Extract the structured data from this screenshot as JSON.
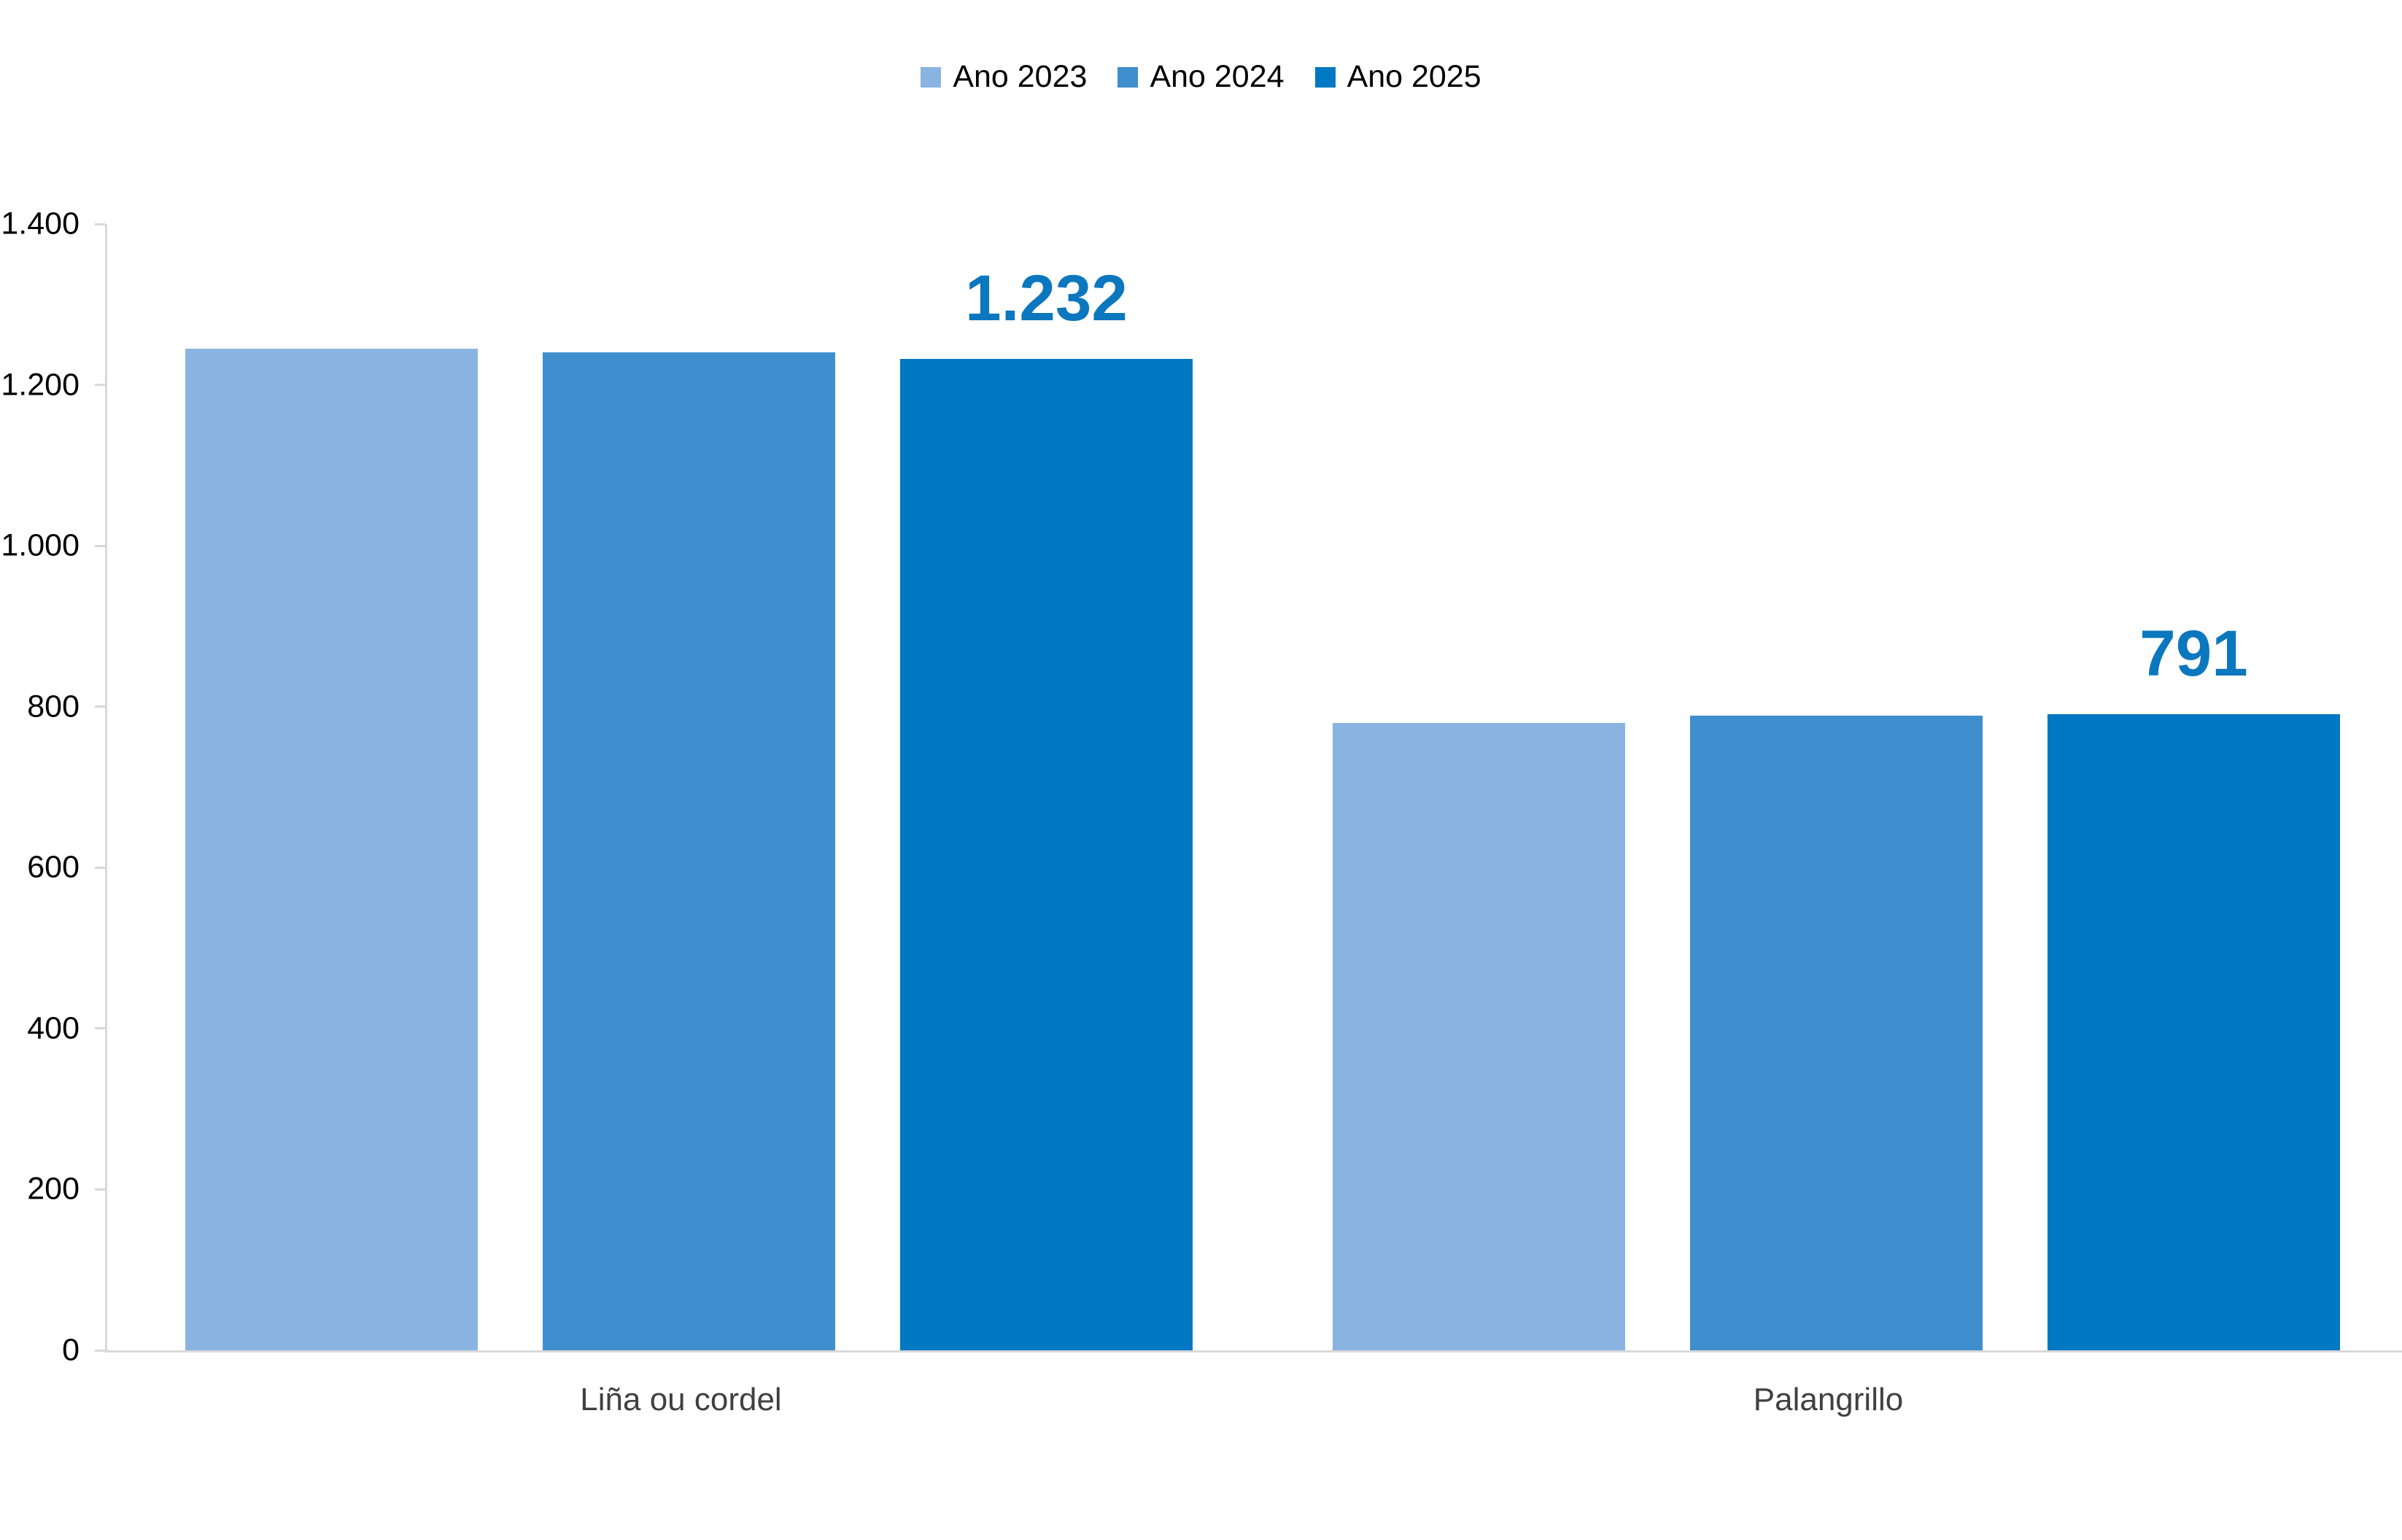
{
  "chart_data": {
    "type": "bar",
    "title": "",
    "xlabel": "",
    "ylabel": "",
    "categories": [
      "Liña ou cordel",
      "Palangrillo"
    ],
    "series": [
      {
        "name": "Ano 2023",
        "color": "#89b4e1",
        "values": [
          1245,
          780
        ]
      },
      {
        "name": "Ano 2024",
        "color": "#3f8ecd",
        "values": [
          1240,
          789
        ]
      },
      {
        "name": "Ano 2025",
        "color": "#0078c2",
        "values": [
          1232,
          791
        ],
        "data_labels": [
          "1.232",
          "791"
        ]
      }
    ],
    "ylim": [
      0,
      1400
    ],
    "yticks": [
      {
        "value": 0,
        "label": "0"
      },
      {
        "value": 200,
        "label": "200"
      },
      {
        "value": 400,
        "label": "400"
      },
      {
        "value": 600,
        "label": "600"
      },
      {
        "value": 800,
        "label": "800"
      },
      {
        "value": 1000,
        "label": "1.000"
      },
      {
        "value": 1200,
        "label": "1.200"
      },
      {
        "value": 1400,
        "label": "1.400"
      }
    ],
    "legend_position": "top-center",
    "grid": false,
    "colors": {
      "data_label": "#0b77be",
      "axis": "#d9d9d9",
      "tick_label": "#000000",
      "category_label": "#404040",
      "background": "#ffffff"
    }
  }
}
